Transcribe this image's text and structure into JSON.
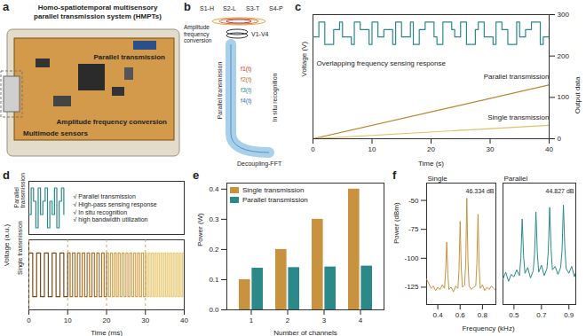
{
  "panels": [
    {
      "letter": "a",
      "title": "Homo-spatiotemporal multisensory parallel transmission system (HMPTs)",
      "labels": {
        "transmission": "Parallel transmission",
        "sensors": "Multimode sensors",
        "conversion": "Amplitude frequency conversion"
      }
    },
    {
      "letter": "b",
      "sensors": [
        "S1-H",
        "S2-L",
        "S3-T",
        "S4-P"
      ],
      "conversion": "Amplitude frequency conversion",
      "voltages": "V1-V4",
      "transmission": "Parallel transmission",
      "signals": [
        "f1(t)",
        "f2(t)",
        "f3(t)",
        "f4(t)"
      ],
      "recognition": "In situ recognition",
      "decoupling": "Decoupling-FFT"
    }
  ],
  "chart_data": [
    {
      "letter": "c",
      "type": "line",
      "x_label": "Time (s)",
      "y_label": "Voltage (V)",
      "y2_label": "Output data",
      "xlim": [
        0,
        40
      ],
      "xticks": [
        0,
        10,
        20,
        30,
        40
      ],
      "ylim": [
        0,
        10
      ],
      "yticks": [],
      "y2lim": [
        0,
        300
      ],
      "y2ticks": [
        0,
        100,
        200,
        300
      ],
      "annotations": [
        "Overlapping frequency sensing response"
      ],
      "series": [
        {
          "type": "step",
          "color": "#2b8a89",
          "x": [
            0,
            1,
            2,
            3.5,
            4.5,
            5,
            6.5,
            7,
            8,
            9.5,
            10,
            11,
            12,
            13.5,
            14,
            15,
            16.5,
            17,
            18,
            19,
            20.5,
            21,
            22,
            23.5,
            24,
            25,
            26,
            27.5,
            28,
            29,
            30.5,
            31,
            32,
            33,
            34.5,
            35,
            36,
            37,
            38.5,
            39,
            40
          ],
          "values": [
            8.2,
            9.4,
            7.6,
            8.8,
            9.4,
            8.2,
            7.6,
            9.4,
            8.8,
            7.6,
            9.4,
            8.2,
            8.8,
            7.6,
            9.4,
            8.2,
            9.4,
            7.6,
            8.8,
            9.4,
            8.2,
            7.6,
            9.4,
            8.8,
            8.2,
            9.4,
            7.6,
            8.8,
            9.4,
            8.2,
            7.6,
            9.4,
            8.8,
            7.6,
            9.4,
            8.2,
            8.8,
            9.4,
            7.6,
            8.2,
            8.8
          ]
        },
        {
          "name": "Parallel transmission",
          "type": "line",
          "axis": "y2",
          "color": "#b8842f",
          "x": [
            0,
            40
          ],
          "values": [
            0,
            130
          ]
        },
        {
          "name": "Single transmission",
          "type": "line",
          "axis": "y2",
          "color": "#e3c06a",
          "x": [
            0,
            40
          ],
          "values": [
            0,
            32.5
          ]
        }
      ]
    },
    {
      "letter": "d",
      "type": "line",
      "x_label": "Time (ms)",
      "y_label": "Voltage (a.u.)",
      "xlim": [
        0,
        40
      ],
      "xticks": [
        0,
        10,
        20,
        30,
        40
      ],
      "tick_labels": "x",
      "vlines": [
        0,
        10,
        20,
        30
      ],
      "subplots": [
        {
          "title": "Parallel transmission",
          "ylim": [
            0,
            4
          ],
          "annotations": [
            "√ Parallel transmission",
            "√ High-pass sensing response",
            "√ In situ recognition",
            "√ high bandwidth utilization"
          ],
          "series": [
            {
              "type": "step",
              "color": "#2b8a89",
              "x": [
                0,
                0.6,
                1.2,
                1.8,
                2.4,
                3.0,
                3.6,
                4.2,
                4.8,
                5.4,
                6.0,
                6.6,
                7.2,
                7.8,
                8.4,
                9.0
              ],
              "values": [
                1.5,
                3.5,
                2.5,
                0.5,
                3.5,
                1.5,
                2.5,
                3.5,
                0.5,
                2.5,
                1.5,
                3.5,
                0.5,
                2.5,
                3.5,
                1.5
              ]
            }
          ]
        },
        {
          "title": "Single transmission",
          "ylim": [
            -0.3,
            1.3
          ],
          "series": [
            {
              "type": "step",
              "color": "#7a4a16",
              "x": [
                0,
                1,
                2,
                3,
                4,
                5,
                6,
                7,
                8,
                9,
                10
              ],
              "values": [
                1,
                0,
                1,
                0,
                1,
                0,
                1,
                0,
                1,
                0,
                1
              ]
            },
            {
              "type": "step",
              "color": "#a8722c",
              "x": [
                10,
                10.625,
                11.25,
                11.875,
                12.5,
                13.125,
                13.75,
                14.375,
                15,
                15.625,
                16.25,
                16.875,
                17.5,
                18.125,
                18.75,
                19.375,
                20
              ],
              "values": [
                1,
                0,
                1,
                0,
                1,
                0,
                1,
                0,
                1,
                0,
                1,
                0,
                1,
                0,
                1,
                0,
                1
              ]
            },
            {
              "type": "step",
              "color": "#d1a24c",
              "x": [
                20,
                20.5,
                21,
                21.5,
                22,
                22.5,
                23,
                23.5,
                24,
                24.5,
                25,
                25.5,
                26,
                26.5,
                27,
                27.5,
                28,
                28.5,
                29,
                29.5,
                30
              ],
              "values": [
                1,
                0,
                1,
                0,
                1,
                0,
                1,
                0,
                1,
                0,
                1,
                0,
                1,
                0,
                1,
                0,
                1,
                0,
                1,
                0,
                1
              ]
            },
            {
              "type": "step",
              "color": "#e8cc78",
              "x": [
                30,
                30.4,
                30.8,
                31.2,
                31.6,
                32,
                32.4,
                32.8,
                33.2,
                33.6,
                34,
                34.4,
                34.8,
                35.2,
                35.6,
                36,
                36.4,
                36.8,
                37.2,
                37.6,
                38,
                38.4,
                38.8,
                39.2,
                39.6,
                40
              ],
              "values": [
                1,
                0,
                1,
                0,
                1,
                0,
                1,
                0,
                1,
                0,
                1,
                0,
                1,
                0,
                1,
                0,
                1,
                0,
                1,
                0,
                1,
                0,
                1,
                0,
                1,
                0
              ]
            }
          ]
        }
      ]
    },
    {
      "letter": "e",
      "type": "bar",
      "x_label": "Number of channels",
      "y_label": "Power (W)",
      "categories": [
        1,
        2,
        3,
        4
      ],
      "ylim": [
        0,
        0.42
      ],
      "yticks": [
        {
          "value": 0,
          "label": "0.0"
        },
        0.1,
        0.2,
        0.3,
        0.4
      ],
      "legend": "top-left",
      "series": [
        {
          "name": "Single transmission",
          "color": "#c8923e",
          "values": [
            0.1,
            0.2,
            0.3,
            0.4
          ]
        },
        {
          "name": "Parallel transmission",
          "color": "#2b8a89",
          "values": [
            0.138,
            0.14,
            0.142,
            0.145
          ]
        }
      ]
    },
    {
      "letter": "f",
      "type": "line",
      "x_label": "Frequency (kHz)",
      "y_label": "Power (dBm)",
      "ylim": [
        -140,
        -35
      ],
      "yticks": [
        -125,
        -100,
        -75,
        -50
      ],
      "subplots": [
        {
          "title": "Single",
          "annotations": [
            "46.334 dB"
          ],
          "color": "#c8923e",
          "xlim": [
            0.3,
            0.92
          ],
          "xticks": [
            0.4,
            0.6,
            0.8
          ],
          "x": [
            0.3,
            0.32,
            0.34,
            0.36,
            0.38,
            0.4,
            0.42,
            0.44,
            0.46,
            0.47,
            0.48,
            0.49,
            0.5,
            0.52,
            0.54,
            0.56,
            0.58,
            0.59,
            0.6,
            0.61,
            0.62,
            0.64,
            0.65,
            0.66,
            0.67,
            0.68,
            0.7,
            0.72,
            0.74,
            0.75,
            0.76,
            0.77,
            0.78,
            0.8,
            0.82,
            0.84,
            0.86,
            0.88,
            0.9,
            0.92
          ],
          "values": [
            -118,
            -122,
            -126,
            -124,
            -128,
            -125,
            -127,
            -123,
            -126,
            -112,
            -86,
            -114,
            -127,
            -125,
            -129,
            -124,
            -126,
            -110,
            -68,
            -108,
            -125,
            -123,
            -105,
            -48,
            -102,
            -124,
            -127,
            -125,
            -124,
            -104,
            -62,
            -106,
            -126,
            -123,
            -128,
            -125,
            -127,
            -124,
            -126,
            -128
          ]
        },
        {
          "title": "Parallel",
          "annotations": [
            "44.827 dB"
          ],
          "color": "#2b8a89",
          "tick_labels": "x",
          "xlim": [
            0.42,
            0.95
          ],
          "xticks": [
            0.5,
            0.7,
            0.9
          ],
          "x": [
            0.42,
            0.44,
            0.46,
            0.48,
            0.5,
            0.52,
            0.54,
            0.55,
            0.56,
            0.57,
            0.58,
            0.6,
            0.62,
            0.64,
            0.65,
            0.66,
            0.67,
            0.68,
            0.7,
            0.72,
            0.74,
            0.75,
            0.76,
            0.77,
            0.78,
            0.8,
            0.82,
            0.84,
            0.85,
            0.86,
            0.87,
            0.88,
            0.9,
            0.92,
            0.94,
            0.95
          ],
          "values": [
            -118,
            -112,
            -120,
            -114,
            -116,
            -110,
            -115,
            -100,
            -66,
            -98,
            -113,
            -108,
            -117,
            -111,
            -96,
            -60,
            -95,
            -112,
            -106,
            -115,
            -109,
            -94,
            -56,
            -92,
            -110,
            -107,
            -114,
            -108,
            -93,
            -54,
            -90,
            -109,
            -113,
            -107,
            -116,
            -112
          ]
        }
      ]
    }
  ]
}
